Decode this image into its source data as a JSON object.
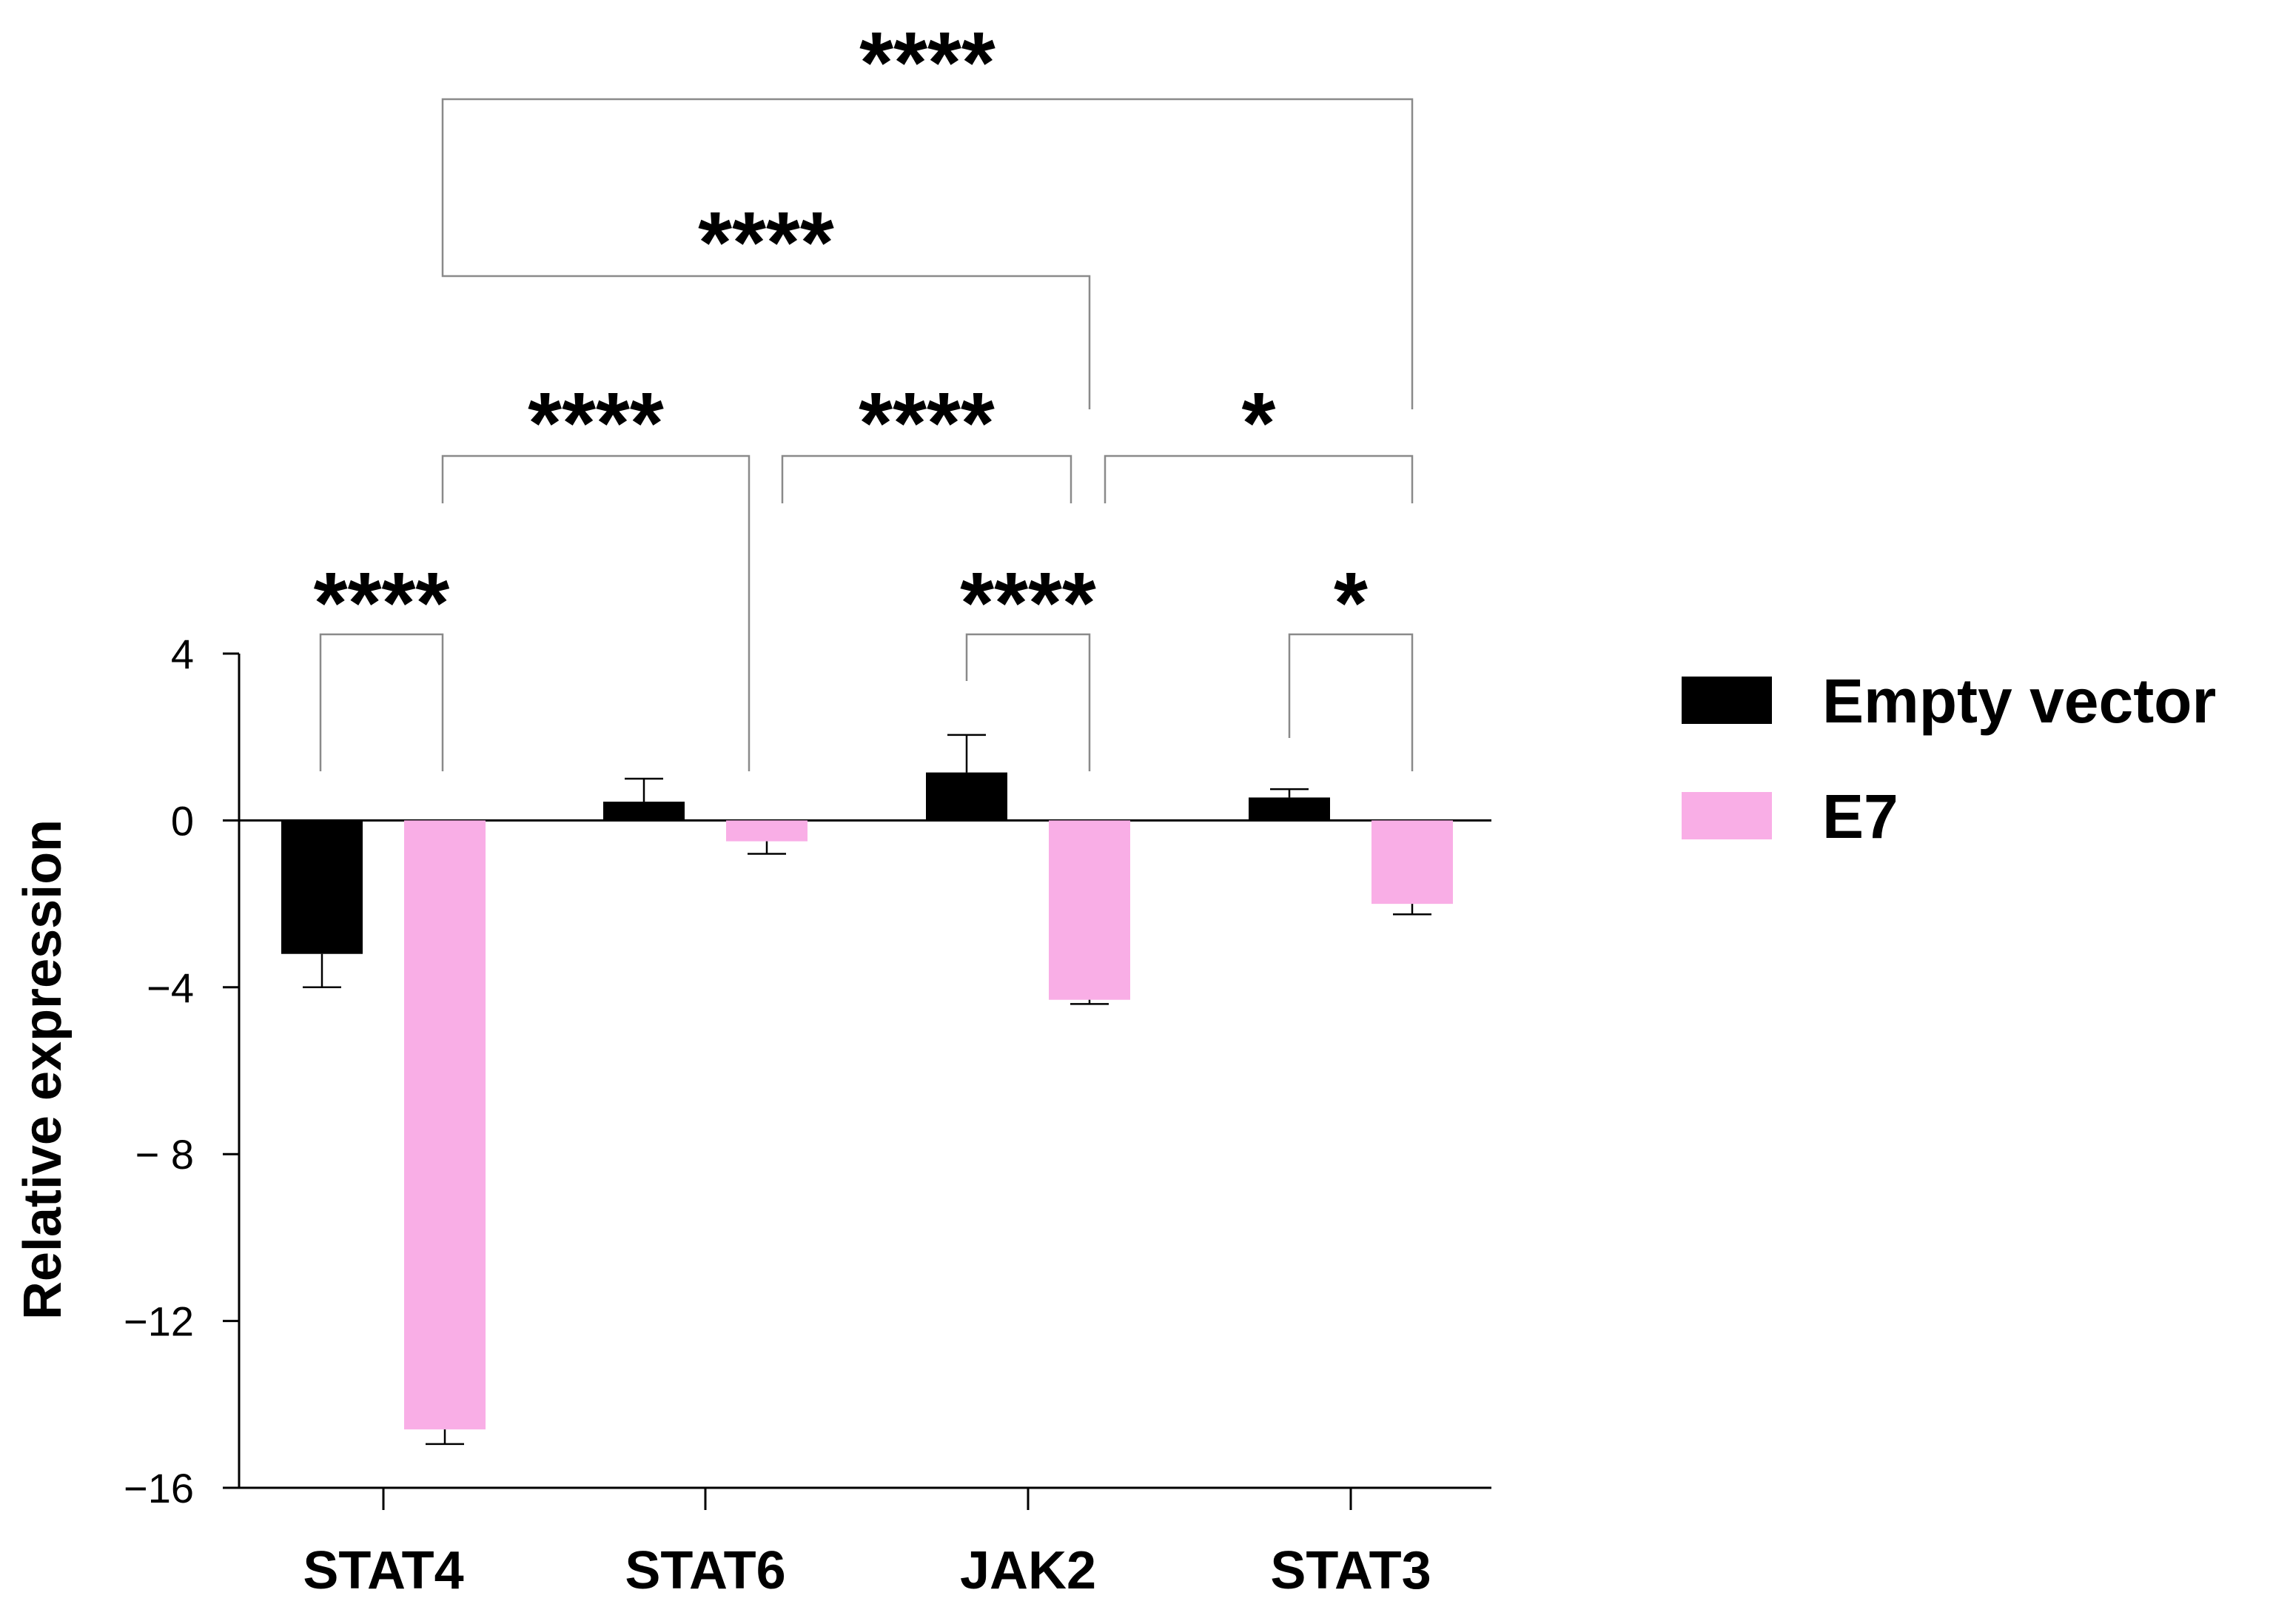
{
  "chart_data": {
    "type": "bar",
    "title": "",
    "xlabel": "",
    "ylabel": "Relative expression",
    "ylim": [
      -16,
      4
    ],
    "yticks": [
      4,
      0,
      -4,
      -8,
      -12,
      -16
    ],
    "ytick_labels": [
      "4",
      "0",
      "−4",
      "− 8",
      "−12",
      "−16"
    ],
    "categories": [
      "STAT4",
      "STAT6",
      "JAK2",
      "STAT3"
    ],
    "series": [
      {
        "name": "Empty vector",
        "color": "#000000",
        "values": [
          -3.2,
          0.45,
          1.15,
          0.55
        ],
        "errors": [
          0.8,
          0.55,
          0.9,
          0.2
        ]
      },
      {
        "name": "E7",
        "color": "#f9aee6",
        "values": [
          -14.6,
          -0.5,
          -4.3,
          -2.0
        ],
        "errors": [
          0.35,
          0.3,
          0.1,
          0.25
        ]
      }
    ],
    "legend_position": "right",
    "grid": false,
    "significance": [
      {
        "label": "****",
        "from": "STAT4 Empty vector",
        "to": "STAT4 E7"
      },
      {
        "label": "****",
        "from": "JAK2 Empty vector",
        "to": "JAK2 E7"
      },
      {
        "label": "*",
        "from": "STAT3 Empty vector",
        "to": "STAT3 E7"
      },
      {
        "label": "****",
        "from": "STAT4 E7",
        "to": "STAT6 E7"
      },
      {
        "label": "****",
        "from": "STAT6 E7",
        "to": "JAK2 E7"
      },
      {
        "label": "*",
        "from": "JAK2 E7",
        "to": "STAT3 E7"
      },
      {
        "label": "****",
        "from": "STAT4 E7",
        "to": "JAK2 E7"
      },
      {
        "label": "****",
        "from": "STAT4 E7",
        "to": "STAT3 E7"
      }
    ]
  }
}
